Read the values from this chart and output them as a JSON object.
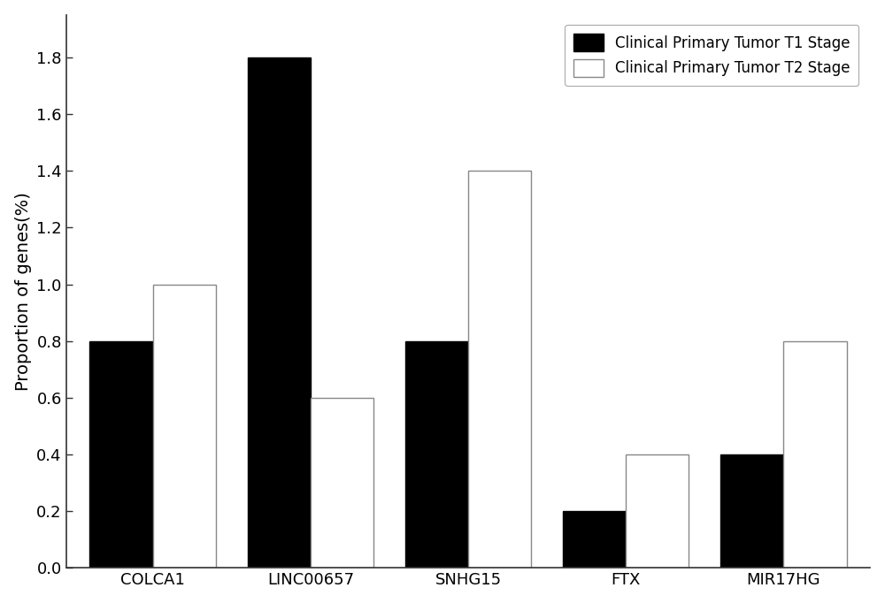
{
  "categories": [
    "COLCA1",
    "LINC00657",
    "SNHG15",
    "FTX",
    "MIR17HG"
  ],
  "t1_values": [
    0.8,
    1.8,
    0.8,
    0.2,
    0.4
  ],
  "t2_values": [
    1.0,
    0.6,
    1.4,
    0.4,
    0.8
  ],
  "t1_color": "#000000",
  "t2_color": "#ffffff",
  "t2_edgecolor": "#888888",
  "t1_edgecolor": "#000000",
  "bar_width": 0.4,
  "ylabel": "Proportion of genes(%)",
  "ylim": [
    0.0,
    1.95
  ],
  "yticks": [
    0.0,
    0.2,
    0.4,
    0.6,
    0.8,
    1.0,
    1.2,
    1.4,
    1.6,
    1.8
  ],
  "legend_t1": "Clinical Primary Tumor T1 Stage",
  "legend_t2": "Clinical Primary Tumor T2 Stage",
  "background_color": "#ffffff",
  "axes_background": "#ffffff",
  "label_fontsize": 14,
  "tick_fontsize": 13,
  "legend_fontsize": 12
}
